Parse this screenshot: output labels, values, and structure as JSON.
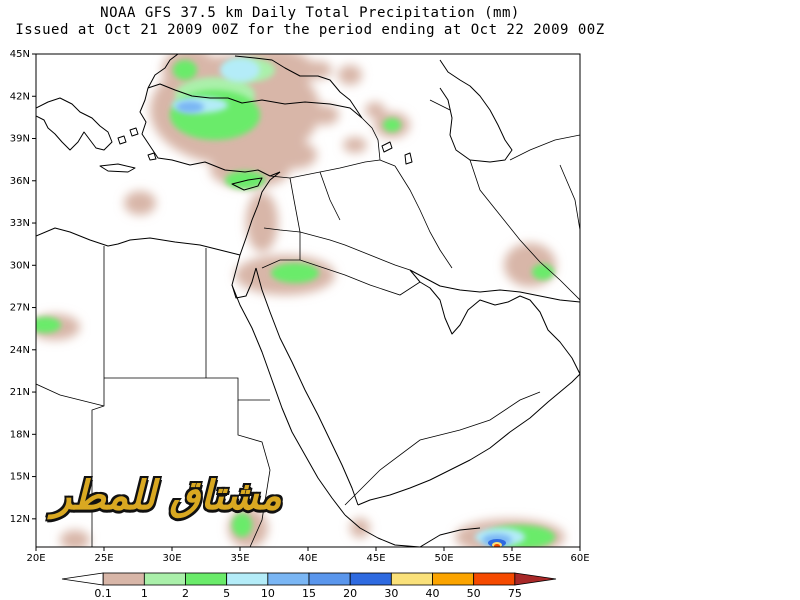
{
  "title": {
    "line1": "NOAA GFS 37.5 km Daily Total Precipitation (mm)",
    "line2": "Issued at Oct 21 2009 00Z for the period ending at Oct 22 2009 00Z"
  },
  "map": {
    "lon_range": [
      20,
      60
    ],
    "lat_range": [
      10,
      45
    ],
    "lat_ticks": [
      "45N",
      "42N",
      "39N",
      "36N",
      "33N",
      "30N",
      "27N",
      "24N",
      "21N",
      "18N",
      "15N",
      "12N"
    ],
    "lon_ticks": [
      "20E",
      "25E",
      "30E",
      "35E",
      "40E",
      "45E",
      "50E",
      "55E",
      "60E"
    ],
    "precip_areas": [
      {
        "name": "black-sea-turkey-rain",
        "lon": 30.5,
        "lat": 41.0,
        "value_mm": 10
      },
      {
        "name": "anatolia-rain",
        "lon": 31.5,
        "lat": 38.5,
        "value_mm": 2
      },
      {
        "name": "cyprus-rain",
        "lon": 34.5,
        "lat": 35.8,
        "value_mm": 2
      },
      {
        "name": "northern-arabia-rain",
        "lon": 37.5,
        "lat": 29.5,
        "value_mm": 2
      },
      {
        "name": "iran-south-rain",
        "lon": 53.5,
        "lat": 30.0,
        "value_mm": 2
      },
      {
        "name": "caucasus-rain",
        "lon": 46.5,
        "lat": 40.5,
        "value_mm": 2
      },
      {
        "name": "libya-rain",
        "lon": 20.5,
        "lat": 25.5,
        "value_mm": 2
      },
      {
        "name": "arabian-sea-rain",
        "lon": 53.5,
        "lat": 10.5,
        "value_mm": 50
      }
    ]
  },
  "legend": {
    "labels": [
      "0.1",
      "1",
      "2",
      "5",
      "10",
      "15",
      "20",
      "30",
      "40",
      "50",
      "75"
    ],
    "colors": [
      "#ffffff",
      "#d8b6a8",
      "#aaf0aa",
      "#6aeb6a",
      "#b4ecf8",
      "#7ab6f4",
      "#5a96ec",
      "#2e6ae0",
      "#fae17a",
      "#fba400",
      "#f54a00",
      "#a82828"
    ]
  },
  "watermark": {
    "text": "مشتاق للمطر"
  }
}
